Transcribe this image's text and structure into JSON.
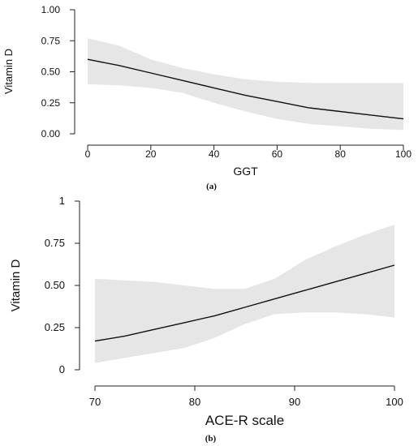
{
  "chart_data": [
    {
      "type": "line",
      "panel_label": "(a)",
      "title": "",
      "xlabel": "GGT",
      "ylabel": "Vitamin D",
      "xlim": [
        0,
        100
      ],
      "ylim": [
        0,
        1
      ],
      "x_ticks": [
        0,
        20,
        40,
        60,
        80,
        100
      ],
      "x_tick_labels": [
        "0",
        "20",
        "40",
        "60",
        "80",
        "100"
      ],
      "y_ticks": [
        0,
        0.25,
        0.5,
        0.75,
        1
      ],
      "y_tick_labels": [
        "0.00",
        "0.25",
        "0.50",
        "0.75",
        "1.00"
      ],
      "grid": false,
      "series": [
        {
          "x": [
            0,
            10,
            20,
            30,
            40,
            50,
            60,
            70,
            80,
            90,
            100
          ],
          "values": [
            0.6,
            0.55,
            0.49,
            0.43,
            0.37,
            0.31,
            0.26,
            0.21,
            0.18,
            0.15,
            0.12
          ],
          "lower": [
            0.4,
            0.39,
            0.37,
            0.33,
            0.25,
            0.18,
            0.12,
            0.08,
            0.06,
            0.04,
            0.03
          ],
          "upper": [
            0.77,
            0.71,
            0.6,
            0.53,
            0.48,
            0.44,
            0.42,
            0.41,
            0.41,
            0.41,
            0.41
          ]
        }
      ]
    },
    {
      "type": "line",
      "panel_label": "(b)",
      "title": "",
      "xlabel": "ACE-R scale",
      "ylabel": "Vitamin D",
      "xlim": [
        70,
        100
      ],
      "ylim": [
        0,
        1
      ],
      "x_ticks": [
        70,
        80,
        90,
        100
      ],
      "x_tick_labels": [
        "70",
        "80",
        "90",
        "100"
      ],
      "y_ticks": [
        0,
        0.25,
        0.5,
        0.75,
        1
      ],
      "y_tick_labels": [
        "0",
        "0.25",
        "0.50",
        "0.75",
        "1"
      ],
      "grid": false,
      "series": [
        {
          "x": [
            70,
            73,
            76,
            79,
            82,
            85,
            88,
            91,
            94,
            97,
            100
          ],
          "values": [
            0.17,
            0.2,
            0.24,
            0.28,
            0.32,
            0.37,
            0.42,
            0.47,
            0.52,
            0.57,
            0.62
          ],
          "lower": [
            0.04,
            0.07,
            0.1,
            0.13,
            0.19,
            0.27,
            0.33,
            0.34,
            0.34,
            0.33,
            0.31
          ],
          "upper": [
            0.54,
            0.53,
            0.52,
            0.5,
            0.48,
            0.48,
            0.54,
            0.65,
            0.73,
            0.8,
            0.86
          ]
        }
      ]
    }
  ]
}
